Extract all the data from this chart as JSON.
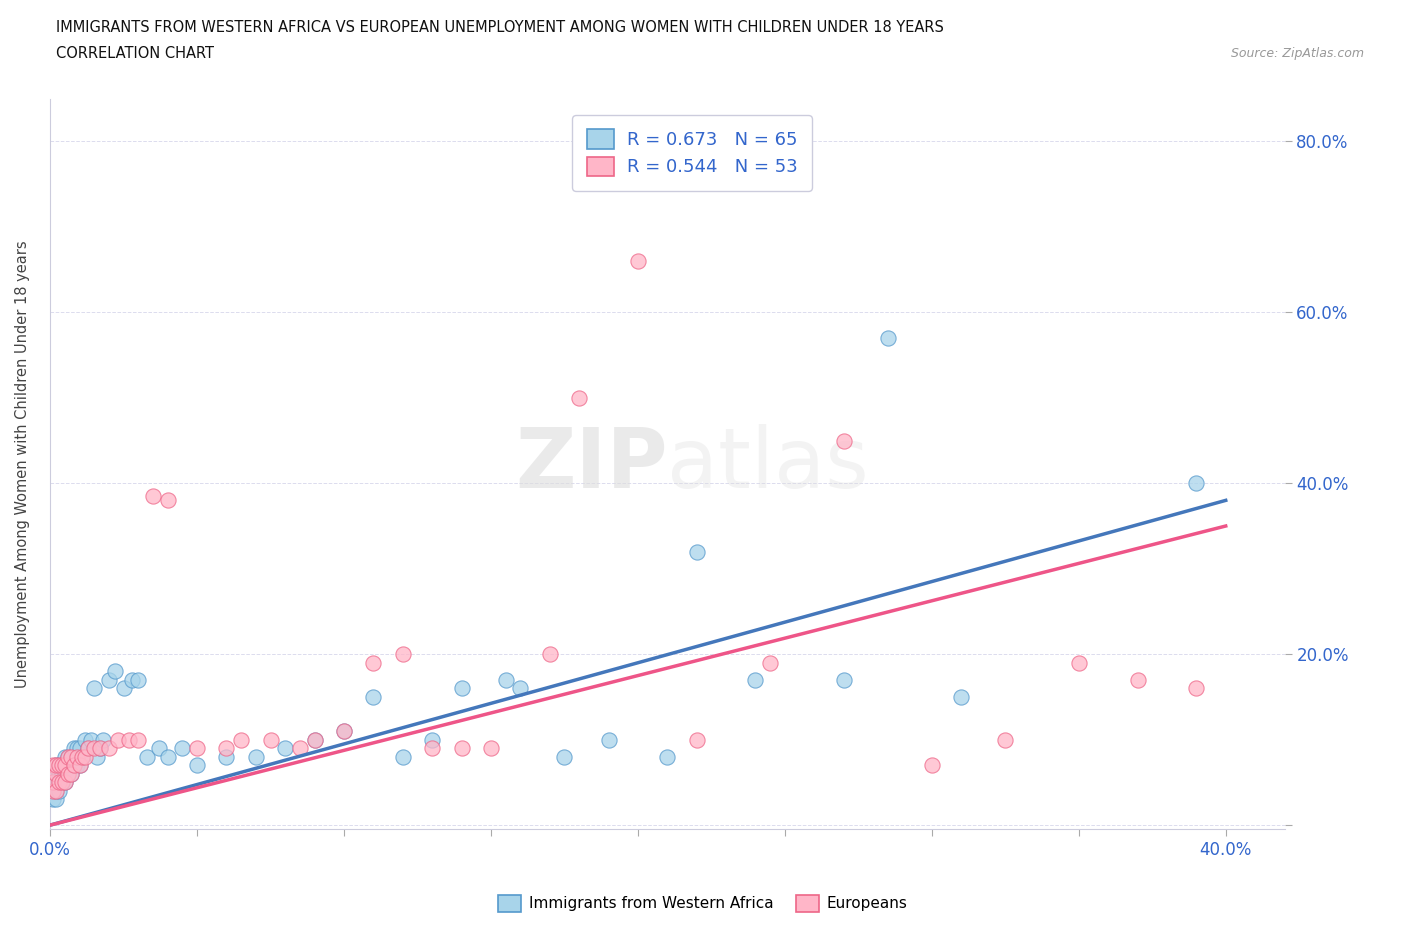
{
  "title_line1": "IMMIGRANTS FROM WESTERN AFRICA VS EUROPEAN UNEMPLOYMENT AMONG WOMEN WITH CHILDREN UNDER 18 YEARS",
  "title_line2": "CORRELATION CHART",
  "source": "Source: ZipAtlas.com",
  "ylabel": "Unemployment Among Women with Children Under 18 years",
  "xlim": [
    0.0,
    0.42
  ],
  "ylim": [
    -0.005,
    0.85
  ],
  "blue_color": "#A8D4EA",
  "blue_edge_color": "#5599CC",
  "pink_color": "#FFB6C8",
  "pink_edge_color": "#EE6688",
  "blue_line_color": "#4477BB",
  "pink_line_color": "#EE5588",
  "legend_text_color": "#3366CC",
  "R_blue": 0.673,
  "N_blue": 65,
  "R_pink": 0.544,
  "N_pink": 53,
  "legend_label_blue": "Immigrants from Western Africa",
  "legend_label_pink": "Europeans",
  "watermark_zip": "ZIP",
  "watermark_atlas": "atlas",
  "blue_scatter_x": [
    0.001,
    0.001,
    0.001,
    0.002,
    0.002,
    0.002,
    0.002,
    0.003,
    0.003,
    0.003,
    0.003,
    0.004,
    0.004,
    0.004,
    0.005,
    0.005,
    0.005,
    0.006,
    0.006,
    0.007,
    0.007,
    0.008,
    0.008,
    0.009,
    0.009,
    0.01,
    0.01,
    0.011,
    0.012,
    0.013,
    0.014,
    0.015,
    0.016,
    0.017,
    0.018,
    0.02,
    0.022,
    0.025,
    0.028,
    0.03,
    0.033,
    0.037,
    0.04,
    0.045,
    0.05,
    0.06,
    0.07,
    0.08,
    0.09,
    0.1,
    0.11,
    0.12,
    0.13,
    0.14,
    0.155,
    0.16,
    0.175,
    0.19,
    0.21,
    0.22,
    0.24,
    0.27,
    0.285,
    0.31,
    0.39
  ],
  "blue_scatter_y": [
    0.03,
    0.04,
    0.05,
    0.03,
    0.04,
    0.06,
    0.07,
    0.04,
    0.05,
    0.06,
    0.07,
    0.05,
    0.06,
    0.07,
    0.05,
    0.06,
    0.08,
    0.06,
    0.08,
    0.06,
    0.08,
    0.07,
    0.09,
    0.07,
    0.09,
    0.07,
    0.09,
    0.08,
    0.1,
    0.09,
    0.1,
    0.16,
    0.08,
    0.09,
    0.1,
    0.17,
    0.18,
    0.16,
    0.17,
    0.17,
    0.08,
    0.09,
    0.08,
    0.09,
    0.07,
    0.08,
    0.08,
    0.09,
    0.1,
    0.11,
    0.15,
    0.08,
    0.1,
    0.16,
    0.17,
    0.16,
    0.08,
    0.1,
    0.08,
    0.32,
    0.17,
    0.17,
    0.57,
    0.15,
    0.4
  ],
  "pink_scatter_x": [
    0.001,
    0.001,
    0.001,
    0.002,
    0.002,
    0.002,
    0.003,
    0.003,
    0.004,
    0.004,
    0.005,
    0.005,
    0.006,
    0.006,
    0.007,
    0.007,
    0.008,
    0.009,
    0.01,
    0.011,
    0.012,
    0.013,
    0.015,
    0.017,
    0.02,
    0.023,
    0.027,
    0.03,
    0.035,
    0.04,
    0.05,
    0.06,
    0.065,
    0.075,
    0.085,
    0.09,
    0.1,
    0.11,
    0.12,
    0.13,
    0.14,
    0.15,
    0.17,
    0.18,
    0.2,
    0.22,
    0.245,
    0.27,
    0.3,
    0.325,
    0.35,
    0.37,
    0.39
  ],
  "pink_scatter_y": [
    0.04,
    0.05,
    0.07,
    0.04,
    0.06,
    0.07,
    0.05,
    0.07,
    0.05,
    0.07,
    0.05,
    0.07,
    0.06,
    0.08,
    0.06,
    0.08,
    0.07,
    0.08,
    0.07,
    0.08,
    0.08,
    0.09,
    0.09,
    0.09,
    0.09,
    0.1,
    0.1,
    0.1,
    0.385,
    0.38,
    0.09,
    0.09,
    0.1,
    0.1,
    0.09,
    0.1,
    0.11,
    0.19,
    0.2,
    0.09,
    0.09,
    0.09,
    0.2,
    0.5,
    0.66,
    0.1,
    0.19,
    0.45,
    0.07,
    0.1,
    0.19,
    0.17,
    0.16
  ]
}
